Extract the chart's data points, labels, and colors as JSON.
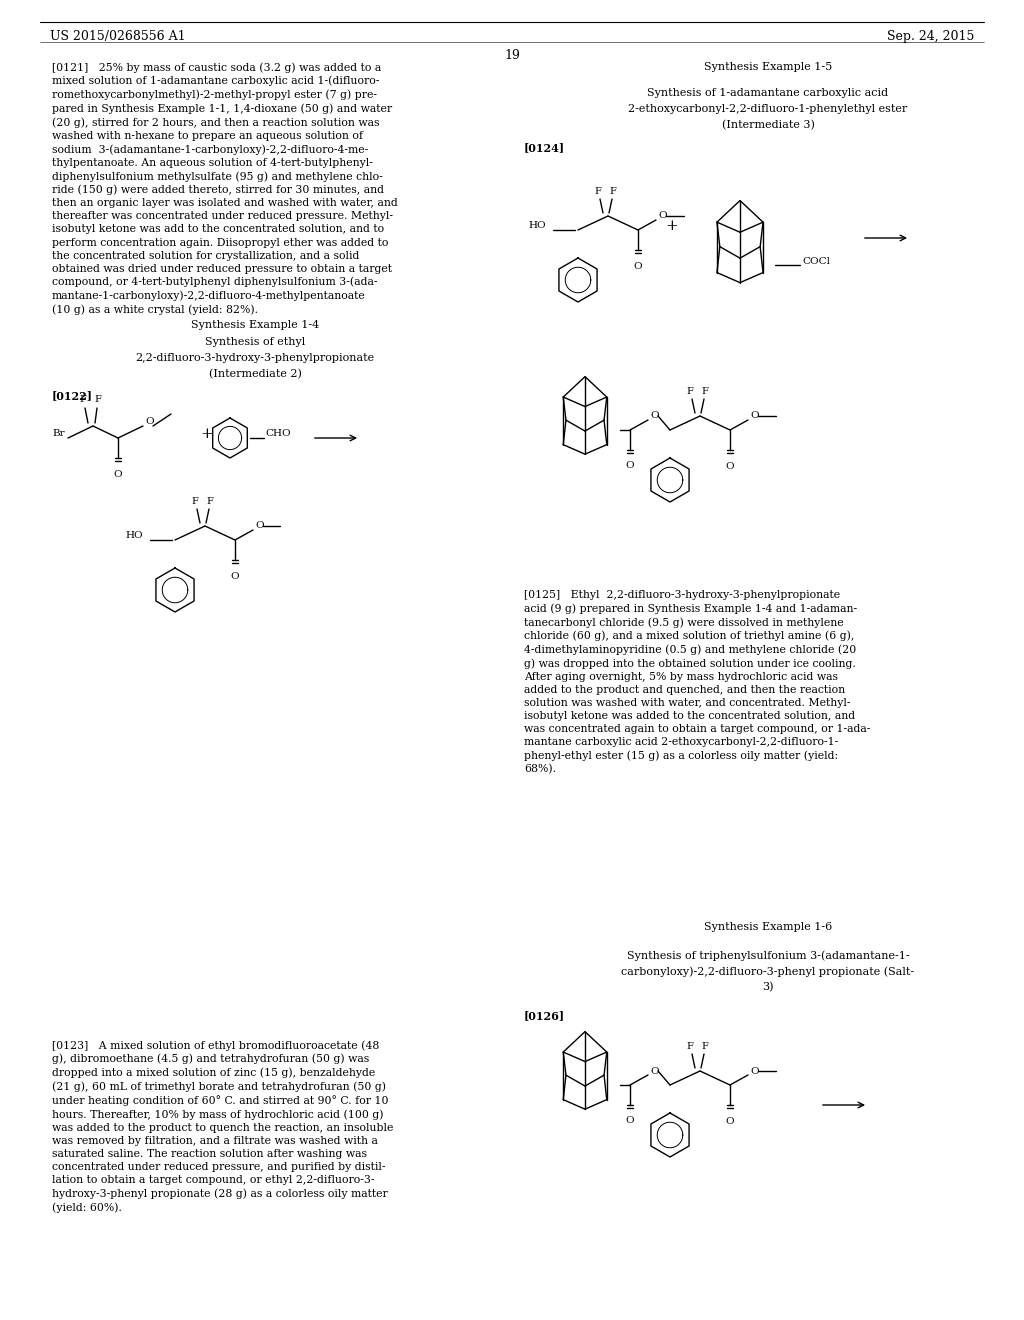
{
  "bg": "#ffffff",
  "header_left": "US 2015/0268556 A1",
  "header_right": "Sep. 24, 2015",
  "page_number": "19",
  "figsize": [
    10.24,
    13.2
  ],
  "dpi": 100
}
